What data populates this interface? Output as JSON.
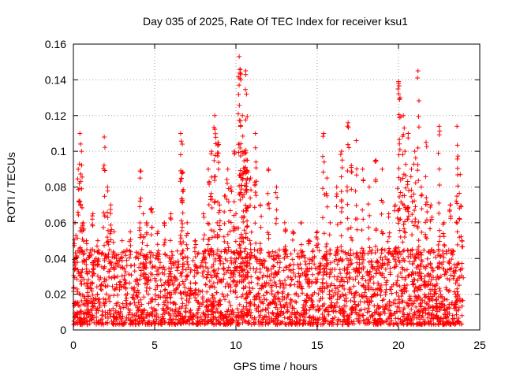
{
  "chart_data": {
    "type": "scatter",
    "title": "Day 035 of 2025, Rate Of TEC Index for receiver ksu1",
    "xlabel": "GPS time / hours",
    "ylabel": "ROTI / TECUs",
    "xlim": [
      0,
      25
    ],
    "ylim": [
      0,
      0.16
    ],
    "x_ticks": [
      "0",
      "5",
      "10",
      "15",
      "20",
      "25"
    ],
    "y_ticks": [
      "0",
      "0.02",
      "0.04",
      "0.06",
      "0.08",
      "0.1",
      "0.12",
      "0.14",
      "0.16"
    ],
    "grid": true,
    "marker": "plus",
    "color": "#ff0000",
    "series": [
      {
        "points": [
          [
            0.1,
            0.06
          ],
          [
            0.3,
            0.09
          ],
          [
            0.4,
            0.11
          ],
          [
            0.5,
            0.1
          ],
          [
            0.6,
            0.06
          ],
          [
            0.8,
            0.05
          ],
          [
            1.2,
            0.065
          ],
          [
            1.5,
            0.05
          ],
          [
            1.9,
            0.108
          ],
          [
            2.1,
            0.08
          ],
          [
            2.3,
            0.07
          ],
          [
            2.5,
            0.055
          ],
          [
            3.0,
            0.05
          ],
          [
            3.5,
            0.055
          ],
          [
            4.1,
            0.089
          ],
          [
            4.3,
            0.065
          ],
          [
            4.5,
            0.06
          ],
          [
            4.8,
            0.068
          ],
          [
            5.2,
            0.055
          ],
          [
            5.6,
            0.06
          ],
          [
            6.0,
            0.065
          ],
          [
            6.6,
            0.11
          ],
          [
            6.7,
            0.104
          ],
          [
            6.7,
            0.088
          ],
          [
            7.0,
            0.06
          ],
          [
            7.5,
            0.05
          ],
          [
            8.0,
            0.065
          ],
          [
            8.3,
            0.09
          ],
          [
            8.5,
            0.1
          ],
          [
            8.7,
            0.12
          ],
          [
            8.9,
            0.105
          ],
          [
            9.0,
            0.07
          ],
          [
            9.3,
            0.075
          ],
          [
            9.5,
            0.09
          ],
          [
            9.7,
            0.08
          ],
          [
            9.9,
            0.1
          ],
          [
            10.0,
            0.065
          ],
          [
            10.2,
            0.153
          ],
          [
            10.25,
            0.146
          ],
          [
            10.3,
            0.14
          ],
          [
            10.4,
            0.12
          ],
          [
            10.5,
            0.1
          ],
          [
            10.6,
            0.145
          ],
          [
            10.65,
            0.132
          ],
          [
            10.7,
            0.095
          ],
          [
            10.9,
            0.085
          ],
          [
            11.2,
            0.11
          ],
          [
            11.5,
            0.07
          ],
          [
            12.0,
            0.09
          ],
          [
            12.5,
            0.08
          ],
          [
            13.0,
            0.06
          ],
          [
            13.5,
            0.055
          ],
          [
            14.0,
            0.06
          ],
          [
            14.5,
            0.05
          ],
          [
            15.0,
            0.055
          ],
          [
            15.4,
            0.11
          ],
          [
            15.6,
            0.085
          ],
          [
            15.8,
            0.06
          ],
          [
            16.2,
            0.08
          ],
          [
            16.5,
            0.1
          ],
          [
            16.9,
            0.116
          ],
          [
            17.1,
            0.092
          ],
          [
            17.4,
            0.106
          ],
          [
            17.8,
            0.09
          ],
          [
            18.2,
            0.08
          ],
          [
            18.6,
            0.095
          ],
          [
            19.0,
            0.09
          ],
          [
            19.4,
            0.065
          ],
          [
            19.8,
            0.07
          ],
          [
            20.0,
            0.139
          ],
          [
            20.1,
            0.13
          ],
          [
            20.3,
            0.12
          ],
          [
            20.4,
            0.1
          ],
          [
            20.6,
            0.11
          ],
          [
            20.8,
            0.09
          ],
          [
            21.0,
            0.1
          ],
          [
            21.2,
            0.145
          ],
          [
            21.4,
            0.08
          ],
          [
            21.7,
            0.105
          ],
          [
            22.0,
            0.07
          ],
          [
            22.5,
            0.114
          ],
          [
            22.8,
            0.06
          ],
          [
            23.2,
            0.07
          ],
          [
            23.6,
            0.114
          ],
          [
            23.8,
            0.087
          ],
          [
            23.9,
            0.05
          ]
        ],
        "dense_band": {
          "x_range": [
            0,
            24
          ],
          "y_range": [
            0.003,
            0.045
          ],
          "description_values_per_hour": "multiple ROTI samples per hour per satellite"
        }
      }
    ]
  }
}
